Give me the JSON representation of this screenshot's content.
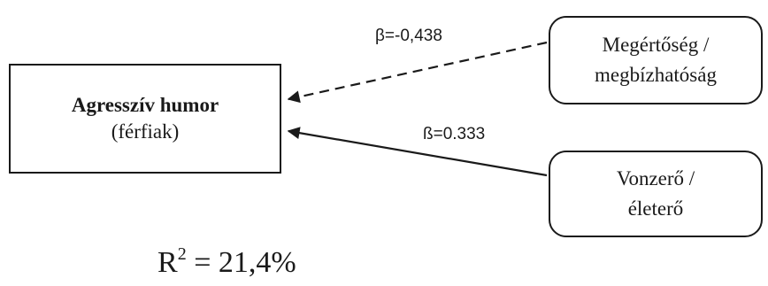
{
  "outcome": {
    "title": "Agresszív humor",
    "subtitle": "(férfiak)"
  },
  "predictors": [
    {
      "line1": "Megértőség /",
      "line2": "megbízhatóság",
      "beta_label": "β=-0,438",
      "beta": -0.438,
      "line_style": "dashed"
    },
    {
      "line1": "Vonzerő /",
      "line2": "életerő",
      "beta_label": "ß=0.333",
      "beta": 0.333,
      "line_style": "solid"
    }
  ],
  "r_squared": {
    "symbol": "R",
    "superscript": "2",
    "value_text": " = 21,4%"
  },
  "colors": {
    "ink": "#1a1a1a",
    "background": "#ffffff"
  }
}
